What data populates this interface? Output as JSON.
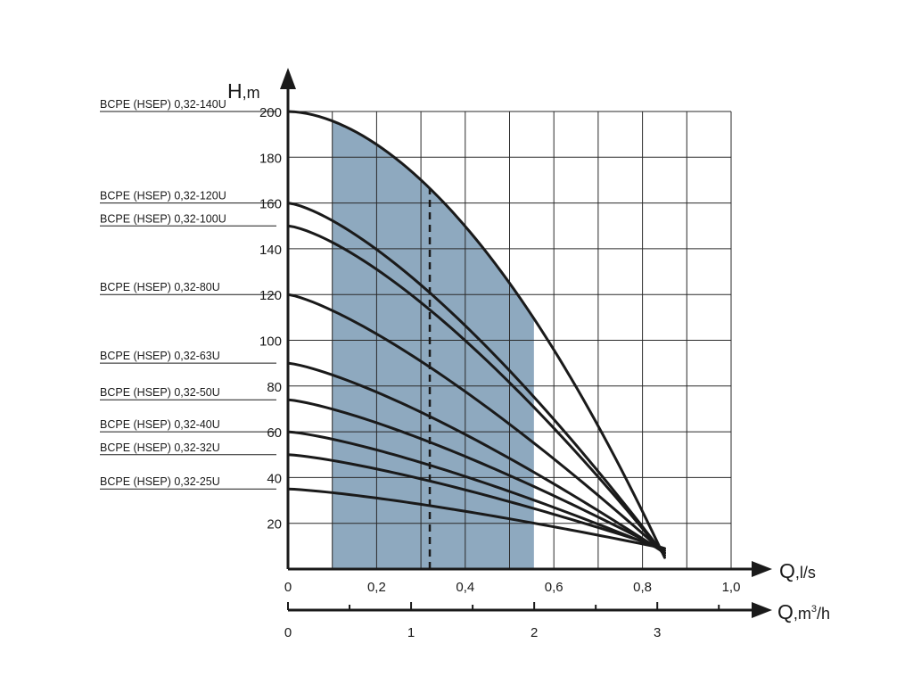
{
  "chart_data": {
    "type": "line",
    "ylabel": {
      "main": "H",
      "unit": ",m"
    },
    "xlabel": {
      "main": "Q",
      "unit": ",l/s"
    },
    "x2label": {
      "main": "Q",
      "unit_prefix": ",m",
      "unit_sup": "3",
      "unit_suffix": "/h"
    },
    "xlim": [
      0,
      1.0
    ],
    "ylim": [
      0,
      200
    ],
    "x_ticks": [
      {
        "value": 0,
        "label": "0"
      },
      {
        "value": 0.2,
        "label": "0,2"
      },
      {
        "value": 0.4,
        "label": "0,4"
      },
      {
        "value": 0.6,
        "label": "0,6"
      },
      {
        "value": 0.8,
        "label": "0,8"
      },
      {
        "value": 1.0,
        "label": "1,0"
      }
    ],
    "y_ticks": [
      {
        "value": 20,
        "label": "20"
      },
      {
        "value": 40,
        "label": "40"
      },
      {
        "value": 60,
        "label": "60"
      },
      {
        "value": 80,
        "label": "80"
      },
      {
        "value": 100,
        "label": "100"
      },
      {
        "value": 120,
        "label": "120"
      },
      {
        "value": 140,
        "label": "140"
      },
      {
        "value": 160,
        "label": "160"
      },
      {
        "value": 180,
        "label": "180"
      },
      {
        "value": 200,
        "label": "200"
      }
    ],
    "x2_ticks": [
      {
        "value": 0,
        "label": "0"
      },
      {
        "value": 1,
        "label": "1"
      },
      {
        "value": 2,
        "label": "2"
      },
      {
        "value": 3,
        "label": "3"
      }
    ],
    "x2_factor": 0.2778,
    "x_grid_step": 0.1,
    "y_grid_step": 20,
    "grid": true,
    "shutoff_flow": 0.85,
    "operating_range": {
      "q_min": 0.1,
      "q_max": 0.555,
      "fill_color": "#8ea9bf"
    },
    "nominal_flow": 0.32,
    "series": [
      {
        "name": "BCPE (HSEP) 0,32-140U",
        "h0": 200,
        "end": 5,
        "shape": 1.8
      },
      {
        "name": "BCPE (HSEP) 0,32-120U",
        "h0": 160,
        "end": 6,
        "shape": 1.4
      },
      {
        "name": "BCPE (HSEP) 0,32-100U",
        "h0": 150,
        "end": 6,
        "shape": 1.4
      },
      {
        "name": "BCPE (HSEP) 0,32-80U",
        "h0": 120,
        "end": 7,
        "shape": 1.3
      },
      {
        "name": "BCPE (HSEP) 0,32-63U",
        "h0": 90,
        "end": 7,
        "shape": 1.3
      },
      {
        "name": "BCPE (HSEP) 0,32-50U",
        "h0": 74,
        "end": 8,
        "shape": 1.3
      },
      {
        "name": "BCPE (HSEP) 0,32-40U",
        "h0": 60,
        "end": 8,
        "shape": 1.3
      },
      {
        "name": "BCPE (HSEP) 0,32-32U",
        "h0": 50,
        "end": 9,
        "shape": 1.3
      },
      {
        "name": "BCPE (HSEP) 0,32-25U",
        "h0": 35,
        "end": 9,
        "shape": 1.3
      }
    ],
    "colors": {
      "curve": "#1a1a1a",
      "grid": "#2a2a2a",
      "axis": "#1a1a1a"
    }
  }
}
